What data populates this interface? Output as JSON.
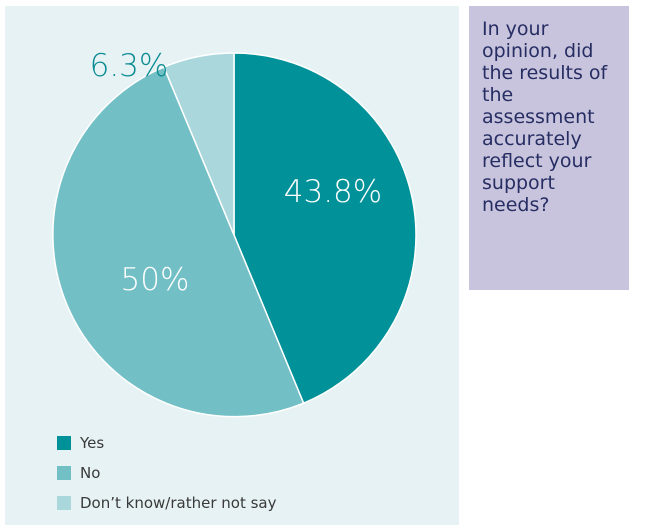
{
  "chart_data": {
    "type": "pie",
    "slices": [
      {
        "category": "Yes",
        "value": 43.8,
        "label": "43.8%",
        "color": "#009199",
        "label_color": "#ffffff"
      },
      {
        "category": "No",
        "value": 50.0,
        "label": "50%",
        "color": "#73bfc6",
        "label_color": "#ffffff"
      },
      {
        "category": "Don’t know/rather not say",
        "value": 6.3,
        "label": "6.3%",
        "color": "#a9d7dc",
        "label_color": "#0b8c93"
      }
    ],
    "start": "12 o'clock",
    "direction": "clockwise",
    "legend_position": "bottom-left"
  },
  "question": "In your opinion, did the results of the assessment accurately reflect your support needs?",
  "colors": {
    "panel_background": "#e6f2f4",
    "question_background": "#c8c4dd",
    "question_text": "#262d63"
  }
}
